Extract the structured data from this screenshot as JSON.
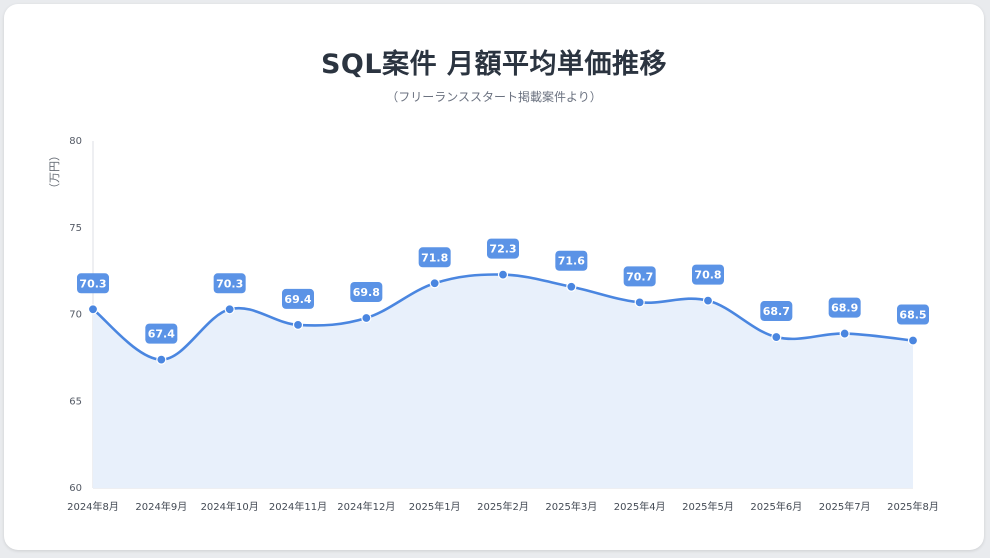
{
  "chart_data": {
    "type": "line",
    "title": "SQL案件 月額平均単価推移",
    "subtitle": "（フリーランススタート掲載案件より）",
    "ylabel": "（万円）",
    "xlabel": "",
    "ylim": [
      60,
      80
    ],
    "yticks": [
      60,
      65,
      70,
      75,
      80
    ],
    "categories": [
      "2024年8月",
      "2024年9月",
      "2024年10月",
      "2024年11月",
      "2024年12月",
      "2025年1月",
      "2025年2月",
      "2025年3月",
      "2025年4月",
      "2025年5月",
      "2025年6月",
      "2025年7月",
      "2025年8月"
    ],
    "series": [
      {
        "name": "月額平均単価",
        "values": [
          70.3,
          67.4,
          70.3,
          69.4,
          69.8,
          71.8,
          72.3,
          71.6,
          70.7,
          70.8,
          68.7,
          68.9,
          68.5
        ]
      }
    ],
    "colors": {
      "line": "#4a86e0",
      "area": "#e8f0fb",
      "label_bg": "#5b93e6",
      "label_text": "#ffffff",
      "axis": "#dcdfe4"
    }
  }
}
